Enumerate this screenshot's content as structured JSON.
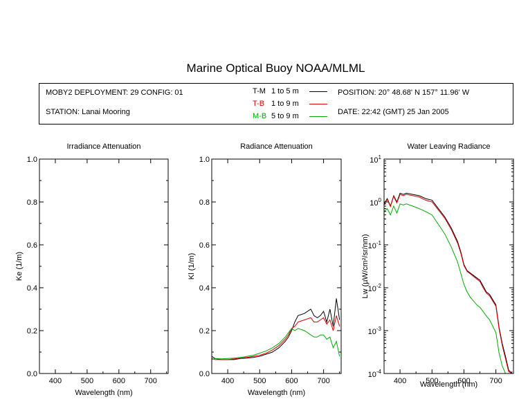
{
  "title": "Marine Optical Buoy NOAA/MLML",
  "info": {
    "deployment": "MOBY2 DEPLOYMENT: 29 CONFIG: 01",
    "station": "STATION: Lanai Mooring",
    "position": "POSITION: 20° 48.68' N   157° 11.96' W",
    "date": "DATE: 22:42 (GMT) 25 Jan 2005",
    "legend": [
      {
        "label": "T-M",
        "range": "1 to 5  m",
        "color": "#000000"
      },
      {
        "label": "T-B",
        "range": "1 to 9  m",
        "color": "#dd0000"
      },
      {
        "label": "M-B",
        "range": "5 to 9  m",
        "color": "#00aa00"
      }
    ]
  },
  "chart_data": [
    {
      "type": "line",
      "title": "Irradiance Attenuation",
      "xlabel": "Wavelength (nm)",
      "ylabel": "Ke  (1/m)",
      "xlim": [
        350,
        755
      ],
      "ylim": [
        0,
        1
      ],
      "xticks": [
        400,
        500,
        600,
        700
      ],
      "yticks": [
        "0.0",
        "0.2",
        "0.4",
        "0.6",
        "0.8",
        "1.0"
      ],
      "series": []
    },
    {
      "type": "line",
      "title": "Radiance Attenuation",
      "xlabel": "Wavelength (nm)",
      "ylabel": "Kl  (1/m)",
      "xlim": [
        350,
        755
      ],
      "ylim": [
        0,
        1
      ],
      "xticks": [
        400,
        500,
        600,
        700
      ],
      "yticks": [
        "0.0",
        "0.2",
        "0.4",
        "0.6",
        "0.8",
        "1.0"
      ],
      "series": [
        {
          "name": "T-M",
          "color": "#000000",
          "x": [
            350,
            360,
            380,
            400,
            420,
            440,
            460,
            480,
            500,
            520,
            540,
            560,
            580,
            590,
            600,
            610,
            620,
            640,
            660,
            670,
            680,
            690,
            700,
            710,
            720,
            730,
            740,
            750
          ],
          "y": [
            0.08,
            0.07,
            0.065,
            0.065,
            0.065,
            0.07,
            0.072,
            0.075,
            0.08,
            0.09,
            0.1,
            0.12,
            0.15,
            0.17,
            0.2,
            0.24,
            0.27,
            0.28,
            0.3,
            0.27,
            0.26,
            0.27,
            0.29,
            0.24,
            0.3,
            0.22,
            0.35,
            0.25
          ]
        },
        {
          "name": "T-B",
          "color": "#dd0000",
          "x": [
            350,
            360,
            380,
            400,
            420,
            440,
            460,
            480,
            500,
            520,
            540,
            560,
            580,
            590,
            600,
            610,
            620,
            640,
            660,
            670,
            680,
            690,
            700,
            710,
            720,
            730,
            740,
            750
          ],
          "y": [
            0.07,
            0.065,
            0.065,
            0.065,
            0.068,
            0.072,
            0.075,
            0.08,
            0.085,
            0.095,
            0.11,
            0.13,
            0.16,
            0.18,
            0.21,
            0.22,
            0.24,
            0.25,
            0.26,
            0.24,
            0.24,
            0.25,
            0.26,
            0.23,
            0.25,
            0.2,
            0.27,
            0.22
          ]
        },
        {
          "name": "M-B",
          "color": "#00aa00",
          "x": [
            350,
            360,
            380,
            400,
            420,
            440,
            460,
            480,
            500,
            520,
            540,
            560,
            580,
            590,
            600,
            610,
            620,
            640,
            660,
            670,
            680,
            690,
            700,
            710,
            720,
            730,
            740,
            750
          ],
          "y": [
            0.065,
            0.07,
            0.068,
            0.07,
            0.072,
            0.075,
            0.08,
            0.085,
            0.095,
            0.105,
            0.12,
            0.14,
            0.17,
            0.19,
            0.21,
            0.2,
            0.21,
            0.2,
            0.18,
            0.17,
            0.17,
            0.18,
            0.18,
            0.16,
            0.17,
            0.12,
            0.15,
            0.08
          ]
        }
      ]
    },
    {
      "type": "line",
      "title": "Water Leaving Radiance",
      "xlabel": "Wavelength (nm)",
      "ylabel": "Lw  (µW/cm²/sr/nm)",
      "yscale": "log",
      "xlim": [
        350,
        755
      ],
      "ylim": [
        0.0001,
        10
      ],
      "xticks": [
        400,
        500,
        600,
        700
      ],
      "yticks": [
        {
          "value": 10,
          "base": "10",
          "exp": "1"
        },
        {
          "value": 1,
          "base": "10",
          "exp": "0"
        },
        {
          "value": 0.1,
          "base": "10",
          "exp": "-1"
        },
        {
          "value": 0.01,
          "base": "10",
          "exp": "-2"
        },
        {
          "value": 0.001,
          "base": "10",
          "exp": "-3"
        },
        {
          "value": 0.0001,
          "base": "10",
          "exp": "-4"
        }
      ],
      "series": [
        {
          "name": "T-M",
          "color": "#000000",
          "x": [
            350,
            360,
            370,
            380,
            390,
            400,
            410,
            420,
            440,
            460,
            480,
            500,
            520,
            540,
            560,
            580,
            590,
            600,
            610,
            620,
            640,
            650,
            660,
            670,
            680,
            700,
            710,
            720,
            730,
            740,
            750
          ],
          "y": [
            0.9,
            1.2,
            0.8,
            1.4,
            1.0,
            1.6,
            1.5,
            1.6,
            1.5,
            1.4,
            1.2,
            1.1,
            0.7,
            0.45,
            0.25,
            0.12,
            0.07,
            0.035,
            0.025,
            0.022,
            0.017,
            0.015,
            0.011,
            0.008,
            0.007,
            0.004,
            0.0012,
            0.0005,
            0.00025,
            0.00012,
            0.0001
          ]
        },
        {
          "name": "T-B",
          "color": "#dd0000",
          "x": [
            350,
            360,
            370,
            380,
            390,
            400,
            410,
            420,
            440,
            460,
            480,
            500,
            520,
            540,
            560,
            580,
            590,
            600,
            610,
            620,
            640,
            650,
            660,
            670,
            680,
            700,
            710,
            720,
            730,
            740,
            750
          ],
          "y": [
            0.85,
            1.15,
            0.78,
            1.35,
            0.95,
            1.5,
            1.4,
            1.5,
            1.4,
            1.3,
            1.1,
            1.0,
            0.65,
            0.42,
            0.23,
            0.11,
            0.065,
            0.033,
            0.024,
            0.021,
            0.016,
            0.014,
            0.01,
            0.0075,
            0.0065,
            0.0037,
            0.0011,
            0.00045,
            0.00022,
            0.00011,
            0.0001
          ]
        },
        {
          "name": "M-B",
          "color": "#00aa00",
          "x": [
            350,
            360,
            370,
            380,
            390,
            400,
            410,
            420,
            440,
            460,
            480,
            500,
            520,
            540,
            560,
            580,
            590,
            600,
            610,
            620,
            640,
            650,
            660,
            670,
            680,
            700,
            710,
            720,
            730,
            740,
            750
          ],
          "y": [
            0.6,
            0.7,
            0.5,
            0.8,
            0.55,
            0.9,
            0.85,
            0.9,
            0.8,
            0.7,
            0.6,
            0.5,
            0.3,
            0.18,
            0.09,
            0.04,
            0.022,
            0.012,
            0.008,
            0.006,
            0.004,
            0.0035,
            0.0028,
            0.0022,
            0.0018,
            0.0009,
            0.0003,
            0.00015,
            0.0001,
            0.0001,
            0.0001
          ]
        }
      ]
    }
  ]
}
